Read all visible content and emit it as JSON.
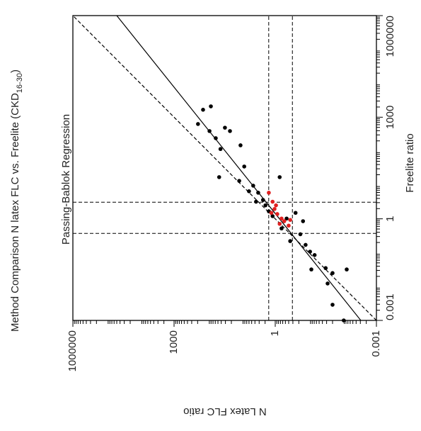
{
  "chart_data": {
    "type": "scatter",
    "title": "Method  Comparison N  latex FLC vs.  Freelite (CKD",
    "title_sub": "16-30",
    "title_end": ")",
    "subtitle": "Passing-Bablok Regression",
    "x_label": "Freelite ratio",
    "y_label": "N  Latex  FLC ratio",
    "log_x": true,
    "log_y": true,
    "xlim": [
      0.001,
      1000000
    ],
    "ylim": [
      0.001,
      1000000
    ],
    "xticks": [
      0.001,
      1,
      1000,
      1000000
    ],
    "yticks": [
      0.001,
      1,
      1000,
      1000000
    ],
    "ref_x": [
      0.37,
      3.1
    ],
    "ref_y": [
      0.31,
      1.56
    ],
    "lines": [
      {
        "style": "dashed",
        "x": [
          0.001,
          1000000
        ],
        "y": [
          0.001,
          1000000
        ]
      },
      {
        "style": "solid",
        "x": [
          0.001,
          1000000
        ],
        "y": [
          0.0029,
          50000
        ]
      }
    ],
    "series": [
      {
        "color": "#000000",
        "x": [
          1660,
          2090,
          630,
          390,
          490,
          240,
          115,
          148,
          35,
          13.2,
          17,
          9.5,
          5.9,
          17,
          2.5,
          3.6,
          1.2,
          1.02,
          1.5,
          0.85,
          0.35,
          0.17,
          0.107,
          0.085,
          0.032,
          0.035,
          0.025,
          0.032,
          0.0123,
          0.0029,
          0.001,
          6.5,
          3.2,
          1.66,
          0.52,
          0.22,
          390
        ],
        "values": [
          138,
          81,
          195,
          89,
          31,
          58,
          42,
          10.7,
          8.3,
          11.7,
          46,
          4.5,
          3.2,
          0.74,
          1.95,
          2.3,
          1.2,
          0.46,
          0.25,
          0.15,
          0.18,
          0.126,
          0.093,
          0.068,
          0.085,
          0.032,
          0.02,
          0.0076,
          0.028,
          0.02,
          0.0093,
          6.0,
          3.7,
          1.55,
          0.65,
          0.36,
          22
        ]
      },
      {
        "color": "#e02020",
        "x": [
          5.9,
          3.2,
          1.95,
          1.38,
          1.02,
          0.85,
          0.71,
          0.63,
          2.5,
          0.93,
          1.5
        ],
        "values": [
          1.55,
          1.2,
          1.05,
          0.87,
          0.65,
          0.54,
          0.74,
          0.4,
          0.95,
          0.36,
          1.3
        ]
      }
    ]
  }
}
